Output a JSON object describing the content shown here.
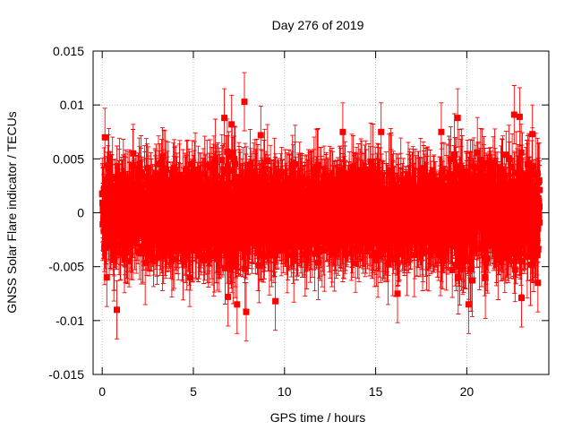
{
  "chart_data": {
    "type": "scatter",
    "title": "Day 276 of 2019",
    "xlabel": "GPS time / hours",
    "ylabel": "GNSS Solar Flare indicator / TECUs",
    "xlim": [
      -0.5,
      24.5
    ],
    "ylim": [
      -0.015,
      0.015
    ],
    "xticks": [
      0,
      5,
      10,
      15,
      20
    ],
    "xtick_labels": [
      "0",
      "5",
      "10",
      "15",
      "20"
    ],
    "yticks": [
      -0.015,
      -0.01,
      -0.005,
      0,
      0.005,
      0.01,
      0.015
    ],
    "ytick_labels": [
      "-0.015",
      "-0.01",
      "-0.005",
      "0",
      "0.005",
      "0.01",
      "0.015"
    ],
    "grid": true,
    "series_color": "#ff0000",
    "series": [
      {
        "name": "solar flare indicator",
        "x_start": 0.0,
        "x_end": 24.0,
        "n_points": 2880,
        "value_range_typical": [
          -0.005,
          0.005
        ],
        "error_bar_typical": 0.003,
        "outliers": [
          {
            "x": 0.15,
            "y": 0.007
          },
          {
            "x": 0.25,
            "y": -0.006
          },
          {
            "x": 0.8,
            "y": -0.009
          },
          {
            "x": 1.7,
            "y": 0.0055
          },
          {
            "x": 3.3,
            "y": 0.0052
          },
          {
            "x": 4.8,
            "y": -0.006
          },
          {
            "x": 6.7,
            "y": 0.0088
          },
          {
            "x": 6.9,
            "y": -0.0078
          },
          {
            "x": 7.1,
            "y": 0.0082
          },
          {
            "x": 7.4,
            "y": -0.0085
          },
          {
            "x": 7.8,
            "y": 0.0103
          },
          {
            "x": 7.9,
            "y": -0.0092
          },
          {
            "x": 8.7,
            "y": 0.0072
          },
          {
            "x": 9.5,
            "y": -0.0082
          },
          {
            "x": 13.2,
            "y": 0.0075
          },
          {
            "x": 15.3,
            "y": 0.0075
          },
          {
            "x": 16.2,
            "y": -0.0075
          },
          {
            "x": 18.6,
            "y": 0.0075
          },
          {
            "x": 19.5,
            "y": 0.0088
          },
          {
            "x": 20.1,
            "y": -0.0085
          },
          {
            "x": 22.6,
            "y": 0.0091
          },
          {
            "x": 22.9,
            "y": 0.0089
          },
          {
            "x": 23.0,
            "y": -0.0079
          },
          {
            "x": 23.6,
            "y": 0.0073
          },
          {
            "x": 23.9,
            "y": -0.0065
          }
        ]
      }
    ]
  }
}
